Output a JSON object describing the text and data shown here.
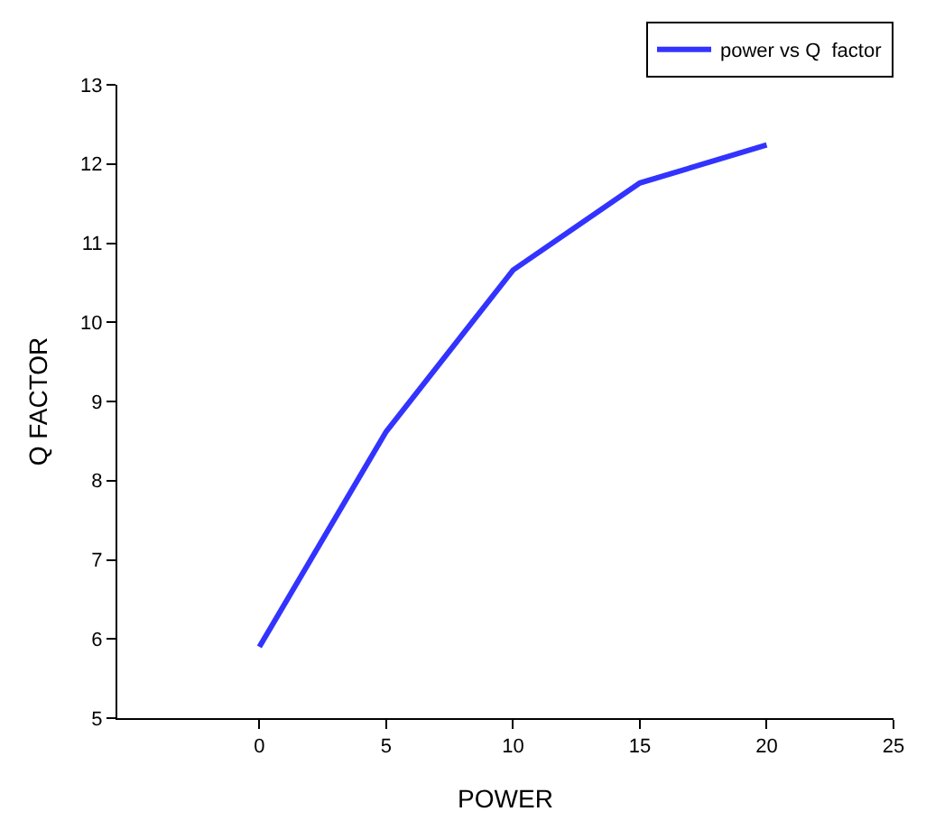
{
  "chart_data": {
    "type": "line",
    "xlabel": "POWER",
    "ylabel": "Q FACTOR",
    "x": [
      0,
      5,
      10,
      15,
      20
    ],
    "series": [
      {
        "name": "power vs Q  factor",
        "color": "#3333ff",
        "values": [
          5.9,
          8.62,
          10.66,
          11.76,
          12.24
        ]
      }
    ],
    "xlim": [
      -5.6,
      25
    ],
    "xticks": [
      0,
      5,
      10,
      15,
      20,
      25
    ],
    "ylim": [
      5,
      13
    ],
    "yticks": [
      5,
      6,
      7,
      8,
      9,
      10,
      11,
      12,
      13
    ],
    "grid": false,
    "legend": "top right",
    "marker": "none",
    "line_style": "solid"
  }
}
